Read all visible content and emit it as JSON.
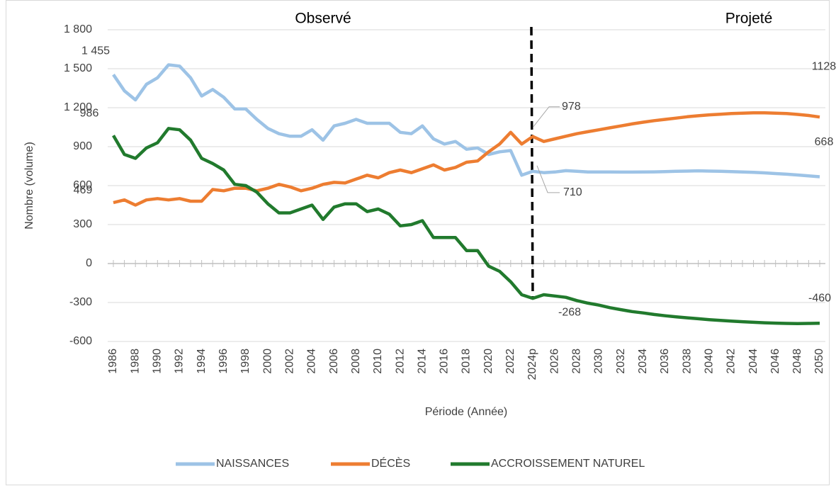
{
  "chart_data": {
    "type": "line",
    "annotations": [
      "Observé",
      "Projeté"
    ],
    "y_label": "Nombre (volume)",
    "x_label": "Période (Année)",
    "categories": [
      "1986",
      null,
      "1988",
      null,
      "1990",
      null,
      "1992",
      null,
      "1994",
      null,
      "1996",
      null,
      "1998",
      null,
      "2000",
      null,
      "2002",
      null,
      "2004",
      null,
      "2006",
      null,
      "2008",
      null,
      "2010",
      null,
      "2012",
      null,
      "2014",
      null,
      "2016",
      null,
      "2018",
      null,
      "2020",
      null,
      "2022",
      null,
      "2024p",
      null,
      "2026",
      null,
      "2028",
      null,
      "2030",
      null,
      "2032",
      null,
      "2034",
      null,
      "2036",
      null,
      "2038",
      null,
      "2040",
      null,
      "2042",
      null,
      "2044",
      null,
      "2046",
      null,
      "2048",
      null,
      "2050"
    ],
    "ylim": [
      -600,
      1800
    ],
    "yticks": [
      -600,
      -300,
      0,
      300,
      600,
      900,
      {
        "value": 1200,
        "label": "1 200"
      },
      {
        "value": 1500,
        "label": "1 500"
      },
      {
        "value": 1800,
        "label": "1 800"
      }
    ],
    "grid": true,
    "legend": "bottom",
    "series": [
      {
        "name": "NAISSANCES",
        "color": "#9dc3e6",
        "values": [
          1455,
          1330,
          1260,
          1380,
          1430,
          1530,
          1520,
          1430,
          1290,
          1340,
          1280,
          1190,
          1190,
          1110,
          1040,
          1000,
          980,
          980,
          1030,
          950,
          1060,
          1080,
          1110,
          1080,
          1080,
          1080,
          1010,
          1000,
          1060,
          960,
          920,
          940,
          880,
          890,
          840,
          860,
          870,
          680,
          710,
          700,
          705,
          715,
          710,
          705,
          705,
          705,
          704,
          704,
          705,
          706,
          708,
          710,
          712,
          714,
          712,
          710,
          708,
          705,
          702,
          698,
          693,
          688,
          682,
          675,
          668
        ],
        "value_labels": [
          "1 455",
          null,
          null,
          null,
          null,
          null,
          null,
          null,
          null,
          null,
          null,
          null,
          null,
          null,
          null,
          null,
          null,
          null,
          null,
          null,
          null,
          null,
          null,
          null,
          null,
          null,
          null,
          null,
          null,
          null,
          null,
          null,
          null,
          null,
          null,
          null,
          null,
          null,
          "710",
          null,
          null,
          null,
          null,
          null,
          null,
          null,
          null,
          null,
          null,
          null,
          null,
          null,
          null,
          null,
          null,
          null,
          null,
          null,
          null,
          null,
          null,
          null,
          null,
          null,
          "668"
        ]
      },
      {
        "name": "DÉCÈS",
        "color": "#ed7d31",
        "values": [
          469,
          490,
          450,
          490,
          500,
          490,
          500,
          480,
          480,
          570,
          560,
          580,
          580,
          560,
          580,
          610,
          590,
          560,
          580,
          610,
          625,
          620,
          650,
          680,
          660,
          700,
          720,
          700,
          730,
          760,
          720,
          740,
          780,
          790,
          860,
          920,
          1010,
          920,
          978,
          940,
          960,
          980,
          1000,
          1015,
          1030,
          1045,
          1060,
          1075,
          1088,
          1100,
          1110,
          1120,
          1130,
          1138,
          1145,
          1150,
          1155,
          1158,
          1160,
          1160,
          1158,
          1155,
          1148,
          1140,
          1128
        ],
        "value_labels": [
          "469",
          null,
          null,
          null,
          null,
          null,
          null,
          null,
          null,
          null,
          null,
          null,
          null,
          null,
          null,
          null,
          null,
          null,
          null,
          null,
          null,
          null,
          null,
          null,
          null,
          null,
          null,
          null,
          null,
          null,
          null,
          null,
          null,
          null,
          null,
          null,
          null,
          null,
          "978",
          null,
          null,
          null,
          null,
          null,
          null,
          null,
          null,
          null,
          null,
          null,
          null,
          null,
          null,
          null,
          null,
          null,
          null,
          null,
          null,
          null,
          null,
          null,
          null,
          null,
          "1128"
        ]
      },
      {
        "name": "ACCROISSEMENT NATUREL",
        "color": "#217a2d",
        "values": [
          986,
          840,
          810,
          890,
          930,
          1040,
          1030,
          950,
          810,
          770,
          720,
          610,
          600,
          550,
          460,
          390,
          390,
          420,
          450,
          340,
          435,
          460,
          460,
          400,
          420,
          380,
          290,
          300,
          330,
          200,
          200,
          200,
          100,
          100,
          -20,
          -60,
          -140,
          -240,
          -268,
          -240,
          -250,
          -260,
          -285,
          -305,
          -320,
          -340,
          -355,
          -370,
          -380,
          -392,
          -402,
          -410,
          -418,
          -425,
          -432,
          -438,
          -443,
          -448,
          -452,
          -456,
          -459,
          -461,
          -462,
          -461,
          -460
        ],
        "value_labels": [
          "986",
          null,
          null,
          null,
          null,
          null,
          null,
          null,
          null,
          null,
          null,
          null,
          null,
          null,
          null,
          null,
          null,
          null,
          null,
          null,
          null,
          null,
          null,
          null,
          null,
          null,
          null,
          null,
          null,
          null,
          null,
          null,
          null,
          null,
          null,
          null,
          null,
          null,
          "-268",
          null,
          null,
          null,
          null,
          null,
          null,
          null,
          null,
          null,
          null,
          null,
          null,
          null,
          null,
          null,
          null,
          null,
          null,
          null,
          null,
          null,
          null,
          null,
          null,
          null,
          "-460"
        ]
      }
    ]
  }
}
